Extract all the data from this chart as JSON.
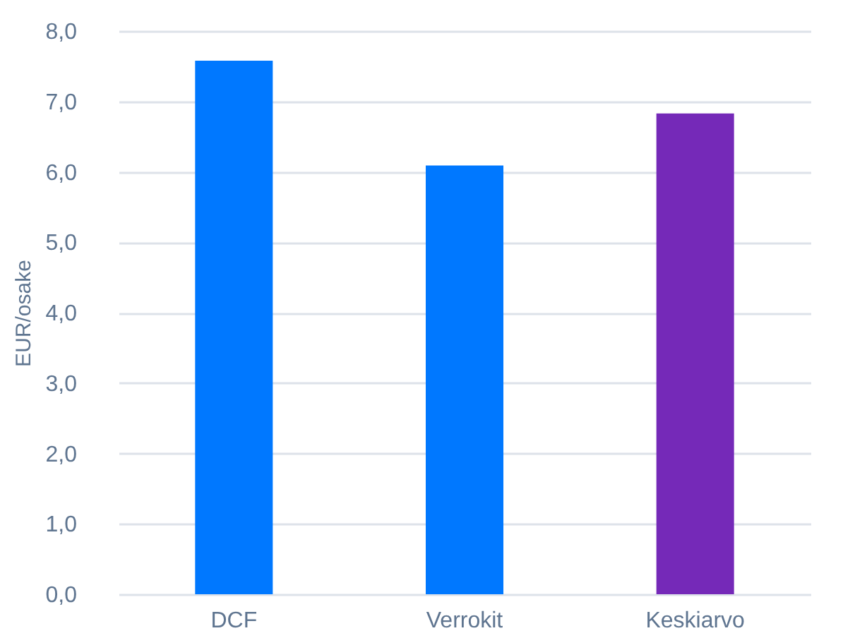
{
  "chart_data": {
    "type": "bar",
    "ylabel": "EUR/osake",
    "categories": [
      "DCF",
      "Verrokit",
      "Keskiarvo"
    ],
    "values": [
      7.58,
      6.09,
      6.83
    ],
    "colors": [
      "#0078ff",
      "#0078ff",
      "#7529b8"
    ],
    "ylim": [
      0,
      8
    ],
    "yticks": [
      {
        "value": 0,
        "label": "0,0"
      },
      {
        "value": 1,
        "label": "1,0"
      },
      {
        "value": 2,
        "label": "2,0"
      },
      {
        "value": 3,
        "label": "3,0"
      },
      {
        "value": 4,
        "label": "4,0"
      },
      {
        "value": 5,
        "label": "5,0"
      },
      {
        "value": 6,
        "label": "6,0"
      },
      {
        "value": 7,
        "label": "7,0"
      },
      {
        "value": 8,
        "label": "8,0"
      }
    ],
    "grid": "y",
    "legend": false
  }
}
